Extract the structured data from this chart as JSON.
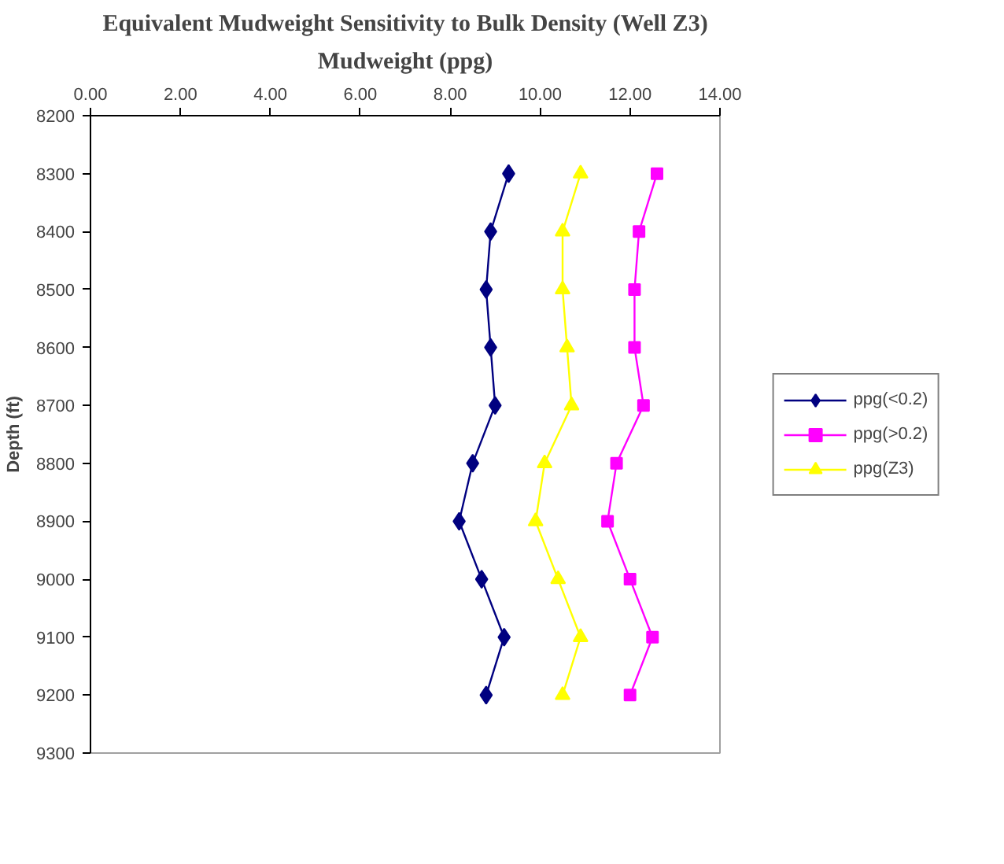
{
  "chart_data": {
    "type": "line",
    "title": "Equivalent Mudweight Sensitivity to Bulk Density (Well Z3)",
    "xlabel": "Mudweight (ppg)",
    "ylabel": "Depth (ft)",
    "xlim": [
      0,
      14
    ],
    "xticks": [
      {
        "value": 0,
        "label": "0.00"
      },
      {
        "value": 2,
        "label": "2.00"
      },
      {
        "value": 4,
        "label": "4.00"
      },
      {
        "value": 6,
        "label": "6.00"
      },
      {
        "value": 8,
        "label": "8.00"
      },
      {
        "value": 10,
        "label": "10.00"
      },
      {
        "value": 12,
        "label": "12.00"
      },
      {
        "value": 14,
        "label": "14.00"
      }
    ],
    "ylim": [
      9300,
      8200
    ],
    "yticks": [
      8200,
      8300,
      8400,
      8500,
      8600,
      8700,
      8800,
      8900,
      9000,
      9100,
      9200,
      9300
    ],
    "grid": false,
    "legend": "right",
    "series": [
      {
        "name": "ppg(<0.2)",
        "color": "#000080",
        "marker": "diamond",
        "x": [
          9.3,
          8.9,
          8.8,
          8.9,
          9.0,
          8.5,
          8.2,
          8.7,
          9.2,
          8.8
        ],
        "values": [
          8300,
          8400,
          8500,
          8600,
          8700,
          8800,
          8900,
          9000,
          9100,
          9200
        ]
      },
      {
        "name": "ppg(>0.2)",
        "color": "#ff00ff",
        "marker": "square",
        "x": [
          12.6,
          12.2,
          12.1,
          12.1,
          12.3,
          11.7,
          11.5,
          12.0,
          12.5,
          12.0
        ],
        "values": [
          8300,
          8400,
          8500,
          8600,
          8700,
          8800,
          8900,
          9000,
          9100,
          9200
        ]
      },
      {
        "name": "ppg(Z3)",
        "color": "#ffff00",
        "marker": "triangle",
        "x": [
          10.9,
          10.5,
          10.5,
          10.6,
          10.7,
          10.1,
          9.9,
          10.4,
          10.9,
          10.5
        ],
        "values": [
          8300,
          8400,
          8500,
          8600,
          8700,
          8800,
          8900,
          9000,
          9100,
          9200
        ]
      }
    ]
  }
}
